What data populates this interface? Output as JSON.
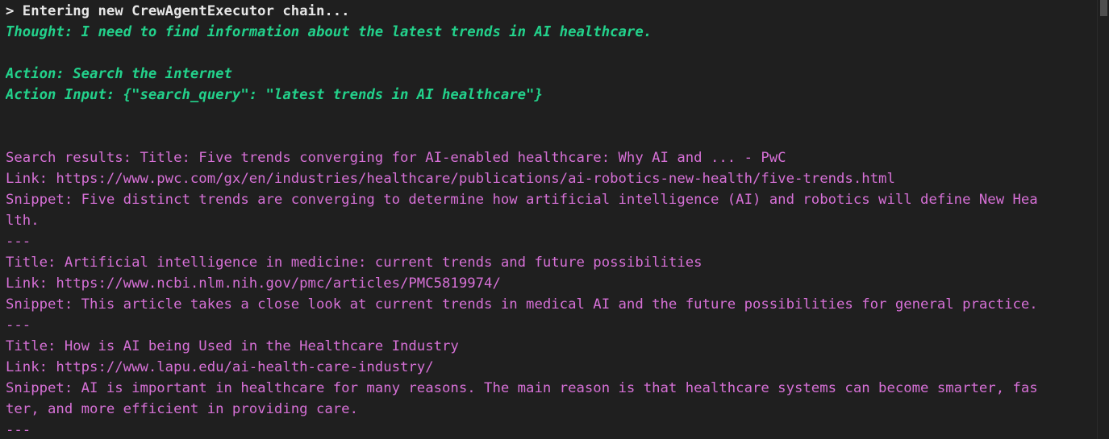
{
  "terminal": {
    "lines": [
      {
        "text": "> Entering new CrewAgentExecutor chain...",
        "style": "header"
      },
      {
        "text": "Thought: I need to find information about the latest trends in AI healthcare.",
        "style": "agent"
      },
      {
        "text": "",
        "style": "agent"
      },
      {
        "text": "Action: Search the internet",
        "style": "agent"
      },
      {
        "text": "Action Input: {\"search_query\": \"latest trends in AI healthcare\"}",
        "style": "agent"
      },
      {
        "text": "",
        "style": "result"
      },
      {
        "text": "",
        "style": "result"
      },
      {
        "text": "Search results: Title: Five trends converging for AI-enabled healthcare: Why AI and ... - PwC",
        "style": "result"
      },
      {
        "text": "Link: https://www.pwc.com/gx/en/industries/healthcare/publications/ai-robotics-new-health/five-trends.html",
        "style": "result"
      },
      {
        "text": "Snippet: Five distinct trends are converging to determine how artificial intelligence (AI) and robotics will define New Hea",
        "style": "result"
      },
      {
        "text": "lth.",
        "style": "result"
      },
      {
        "text": "---",
        "style": "result"
      },
      {
        "text": "Title: Artificial intelligence in medicine: current trends and future possibilities",
        "style": "result"
      },
      {
        "text": "Link: https://www.ncbi.nlm.nih.gov/pmc/articles/PMC5819974/",
        "style": "result"
      },
      {
        "text": "Snippet: This article takes a close look at current trends in medical AI and the future possibilities for general practice.",
        "style": "result"
      },
      {
        "text": "---",
        "style": "result"
      },
      {
        "text": "Title: How is AI being Used in the Healthcare Industry",
        "style": "result"
      },
      {
        "text": "Link: https://www.lapu.edu/ai-health-care-industry/",
        "style": "result"
      },
      {
        "text": "Snippet: AI is important in healthcare for many reasons. The main reason is that healthcare systems can become smarter, fas",
        "style": "result"
      },
      {
        "text": "ter, and more efficient in providing care.",
        "style": "result"
      },
      {
        "text": "---",
        "style": "result"
      }
    ]
  },
  "colors": {
    "background": "#1f1f1f",
    "header": "#e6e6e6",
    "agent": "#23d18b",
    "result": "#d670d6"
  }
}
